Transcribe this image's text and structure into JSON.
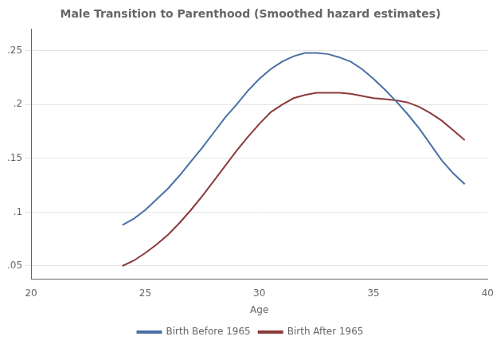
{
  "chart_data": {
    "type": "line",
    "title": "Male Transition to Parenthood (Smoothed hazard estimates)",
    "xlabel": "Age",
    "x": [
      24.0,
      24.5,
      25.0,
      25.5,
      26.0,
      26.5,
      27.0,
      27.5,
      28.0,
      28.5,
      29.0,
      29.5,
      30.0,
      30.5,
      31.0,
      31.5,
      32.0,
      32.5,
      33.0,
      33.5,
      34.0,
      34.5,
      35.0,
      35.5,
      36.0,
      36.5,
      37.0,
      37.5,
      38.0,
      38.5,
      39.0
    ],
    "series": [
      {
        "name": "Birth Before 1965",
        "color": "#4a6fa5",
        "values": [
          0.088,
          0.094,
          0.102,
          0.112,
          0.122,
          0.134,
          0.147,
          0.16,
          0.174,
          0.188,
          0.2,
          0.213,
          0.224,
          0.233,
          0.24,
          0.245,
          0.248,
          0.248,
          0.247,
          0.244,
          0.24,
          0.233,
          0.224,
          0.214,
          0.203,
          0.191,
          0.178,
          0.163,
          0.148,
          0.136,
          0.126
        ]
      },
      {
        "name": "Birth After 1965",
        "color": "#8b3a3a",
        "values": [
          0.05,
          0.055,
          0.062,
          0.07,
          0.079,
          0.09,
          0.102,
          0.115,
          0.129,
          0.143,
          0.157,
          0.17,
          0.182,
          0.193,
          0.2,
          0.206,
          0.209,
          0.211,
          0.211,
          0.211,
          0.21,
          0.208,
          0.206,
          0.205,
          0.204,
          0.202,
          0.198,
          0.192,
          0.185,
          0.176,
          0.167
        ]
      }
    ],
    "xlim": [
      20,
      40
    ],
    "xticks": [
      20,
      25,
      30,
      35,
      40
    ],
    "ylim": [
      0.038,
      0.27
    ],
    "yticks": [
      {
        "value": 0.05,
        "label": ".05"
      },
      {
        "value": 0.1,
        "label": ".1"
      },
      {
        "value": 0.15,
        "label": ".15"
      },
      {
        "value": 0.2,
        "label": ".2"
      },
      {
        "value": 0.25,
        "label": ".25"
      }
    ],
    "grid": "y",
    "legend": "bottom"
  }
}
